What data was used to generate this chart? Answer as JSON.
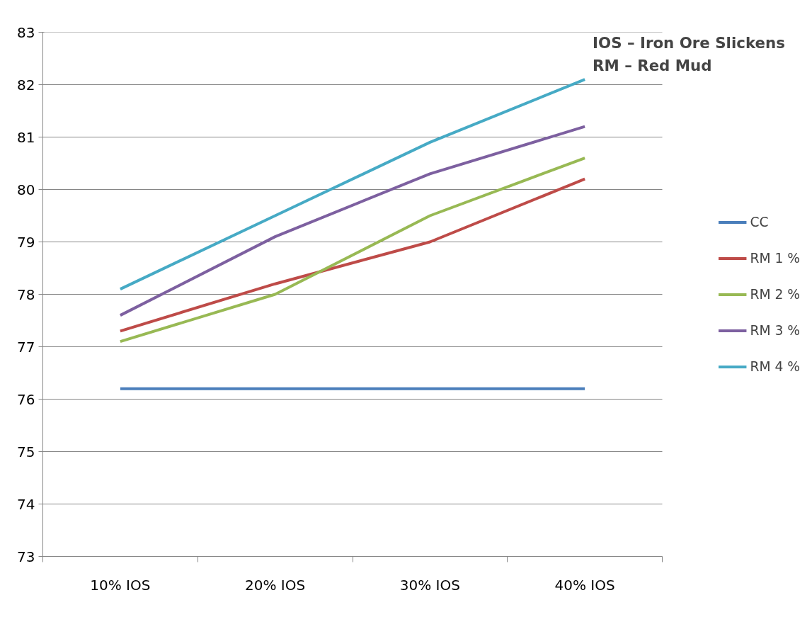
{
  "chart_data": {
    "type": "line",
    "categories": [
      "10% IOS",
      "20% IOS",
      "30% IOS",
      "40% IOS"
    ],
    "series": [
      {
        "name": "CC",
        "color": "#4a7ebb",
        "values": [
          76.2,
          76.2,
          76.2,
          76.2
        ]
      },
      {
        "name": "RM 1 %",
        "color": "#be4b48",
        "values": [
          77.3,
          78.2,
          79.0,
          80.2
        ]
      },
      {
        "name": "RM 2 %",
        "color": "#98b954",
        "values": [
          77.1,
          78.0,
          79.5,
          80.6
        ]
      },
      {
        "name": "RM 3 %",
        "color": "#7d60a0",
        "values": [
          77.6,
          79.1,
          80.3,
          81.2
        ]
      },
      {
        "name": "RM 4 %",
        "color": "#46aac5",
        "values": [
          78.1,
          79.5,
          80.9,
          82.1
        ]
      }
    ],
    "ylim": [
      73,
      83
    ],
    "yticks": [
      73,
      74,
      75,
      76,
      77,
      78,
      79,
      80,
      81,
      82,
      83
    ],
    "grid": "y",
    "legend": "right",
    "marker": "none",
    "line_style": "solid",
    "annotations": [
      "IOS – Iron Ore Slickens",
      "RM – Red Mud"
    ]
  }
}
